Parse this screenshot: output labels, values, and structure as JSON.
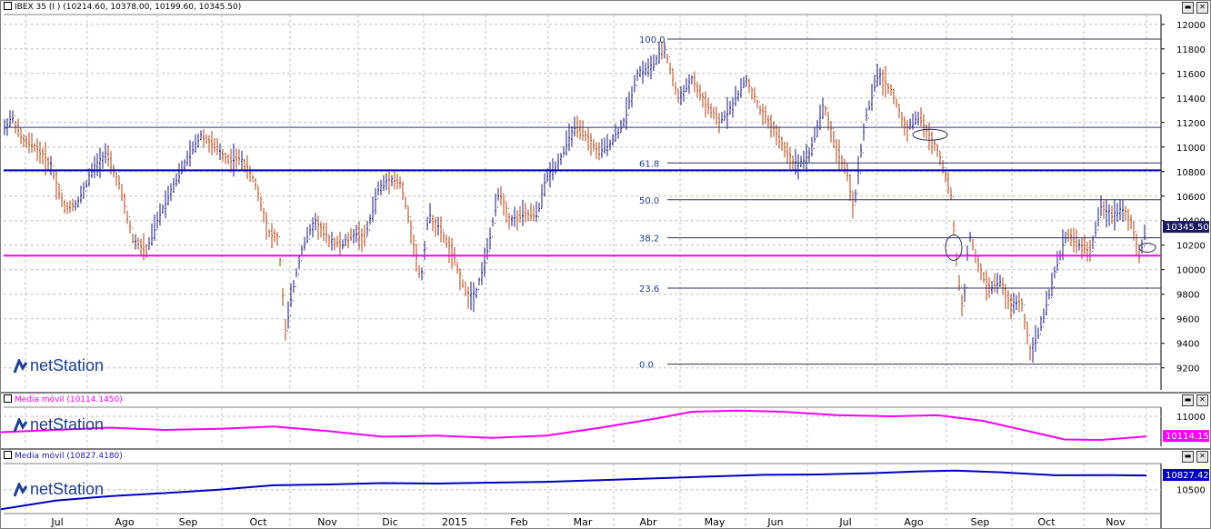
{
  "panels": {
    "main": {
      "title": "IBEX 35 (I ) (10214.60, 10378.00, 10199.60, 10345.50)",
      "last_label": "10345.50",
      "logo": "netStation",
      "minimize_icon": "minimize-icon",
      "close_icon": "close-icon"
    },
    "ma1": {
      "title": "Media móvil (10114.1450)",
      "last_label": "10114.15",
      "logo": "netStation",
      "color": "#ff00ff"
    },
    "ma2": {
      "title": "Media móvil (10827.4180)",
      "last_label": "10827.42",
      "logo": "netStation",
      "color": "#0000c0"
    }
  },
  "months": [
    "Jul",
    "Ago",
    "Sep",
    "Oct",
    "Nov",
    "Dic",
    "2015",
    "Feb",
    "Mar",
    "Abr",
    "May",
    "Jun",
    "Jul",
    "Ago",
    "Sep",
    "Oct",
    "Nov"
  ],
  "chart_data": [
    {
      "type": "bar",
      "subtype": "ohlc",
      "title": "IBEX 35 (I ) (10214.60, 10378.00, 10199.60, 10345.50)",
      "last": {
        "open": 10214.6,
        "high": 10378.0,
        "low": 10199.6,
        "close": 10345.5
      },
      "y_ticks": [
        9200,
        9400,
        9600,
        9800,
        10000,
        10200,
        10400,
        10600,
        10800,
        11000,
        11200,
        11400,
        11600,
        11800,
        12000
      ],
      "ylim": [
        9020,
        12080
      ],
      "x_labels": [
        "Jul",
        "Ago",
        "Sep",
        "Oct",
        "Nov",
        "Dic",
        "2015",
        "Feb",
        "Mar",
        "Abr",
        "May",
        "Jun",
        "Jul",
        "Ago",
        "Sep",
        "Oct",
        "Nov"
      ],
      "grid": true,
      "price_path": [
        [
          0,
          11100
        ],
        [
          12,
          11250
        ],
        [
          24,
          11050
        ],
        [
          38,
          11000
        ],
        [
          55,
          10850
        ],
        [
          70,
          10500
        ],
        [
          85,
          10550
        ],
        [
          100,
          10800
        ],
        [
          115,
          10950
        ],
        [
          130,
          10700
        ],
        [
          145,
          10250
        ],
        [
          160,
          10150
        ],
        [
          175,
          10450
        ],
        [
          190,
          10700
        ],
        [
          205,
          10900
        ],
        [
          220,
          11100
        ],
        [
          235,
          11000
        ],
        [
          250,
          10900
        ],
        [
          265,
          10900
        ],
        [
          280,
          10700
        ],
        [
          295,
          10300
        ],
        [
          305,
          10250
        ],
        [
          313,
          9500
        ],
        [
          320,
          9800
        ],
        [
          330,
          10150
        ],
        [
          345,
          10400
        ],
        [
          360,
          10250
        ],
        [
          375,
          10200
        ],
        [
          390,
          10300
        ],
        [
          400,
          10250
        ],
        [
          415,
          10650
        ],
        [
          428,
          10750
        ],
        [
          440,
          10700
        ],
        [
          452,
          10300
        ],
        [
          462,
          9900
        ],
        [
          470,
          10450
        ],
        [
          485,
          10300
        ],
        [
          498,
          10100
        ],
        [
          512,
          9800
        ],
        [
          522,
          9800
        ],
        [
          535,
          10150
        ],
        [
          548,
          10650
        ],
        [
          560,
          10400
        ],
        [
          575,
          10450
        ],
        [
          590,
          10450
        ],
        [
          600,
          10750
        ],
        [
          615,
          10900
        ],
        [
          630,
          11150
        ],
        [
          642,
          11100
        ],
        [
          658,
          10950
        ],
        [
          672,
          11050
        ],
        [
          685,
          11200
        ],
        [
          700,
          11600
        ],
        [
          715,
          11650
        ],
        [
          730,
          11800
        ],
        [
          745,
          11400
        ],
        [
          760,
          11550
        ],
        [
          775,
          11350
        ],
        [
          790,
          11200
        ],
        [
          805,
          11350
        ],
        [
          820,
          11550
        ],
        [
          835,
          11300
        ],
        [
          850,
          11150
        ],
        [
          860,
          11000
        ],
        [
          875,
          10850
        ],
        [
          890,
          10950
        ],
        [
          905,
          11350
        ],
        [
          918,
          11000
        ],
        [
          930,
          10800
        ],
        [
          938,
          10500
        ],
        [
          950,
          11200
        ],
        [
          965,
          11600
        ],
        [
          980,
          11450
        ],
        [
          995,
          11150
        ],
        [
          1010,
          11250
        ],
        [
          1020,
          11100
        ],
        [
          1032,
          10950
        ],
        [
          1045,
          10600
        ],
        [
          1052,
          10000
        ],
        [
          1058,
          9650
        ],
        [
          1065,
          10300
        ],
        [
          1072,
          10100
        ],
        [
          1085,
          9850
        ],
        [
          1100,
          9900
        ],
        [
          1110,
          9700
        ],
        [
          1122,
          9750
        ],
        [
          1132,
          9350
        ],
        [
          1140,
          9450
        ],
        [
          1150,
          9700
        ],
        [
          1160,
          10000
        ],
        [
          1172,
          10300
        ],
        [
          1185,
          10200
        ],
        [
          1198,
          10150
        ],
        [
          1210,
          10500
        ],
        [
          1222,
          10450
        ],
        [
          1235,
          10500
        ],
        [
          1245,
          10350
        ],
        [
          1252,
          10100
        ],
        [
          1260,
          10345
        ]
      ]
    },
    {
      "type": "line",
      "title": "Media móvil (10114.1450)",
      "last": 10114.15,
      "y_ticks": [
        11000
      ],
      "ylim": [
        9680,
        11400
      ],
      "line_path": [
        [
          0,
          10300
        ],
        [
          60,
          10400
        ],
        [
          120,
          10500
        ],
        [
          180,
          10400
        ],
        [
          240,
          10450
        ],
        [
          300,
          10550
        ],
        [
          360,
          10350
        ],
        [
          420,
          10100
        ],
        [
          480,
          10150
        ],
        [
          540,
          10050
        ],
        [
          600,
          10150
        ],
        [
          660,
          10500
        ],
        [
          720,
          10900
        ],
        [
          760,
          11200
        ],
        [
          810,
          11250
        ],
        [
          860,
          11200
        ],
        [
          920,
          11050
        ],
        [
          980,
          11000
        ],
        [
          1030,
          11050
        ],
        [
          1080,
          10800
        ],
        [
          1130,
          10350
        ],
        [
          1170,
          9980
        ],
        [
          1210,
          9960
        ],
        [
          1260,
          10114
        ]
      ]
    },
    {
      "type": "line",
      "title": "Media móvil (10827.4180)",
      "last": 10827.42,
      "y_ticks": [
        10500
      ],
      "ylim": [
        9950,
        11100
      ],
      "line_path": [
        [
          0,
          10050
        ],
        [
          60,
          10250
        ],
        [
          120,
          10350
        ],
        [
          180,
          10420
        ],
        [
          240,
          10500
        ],
        [
          300,
          10600
        ],
        [
          360,
          10620
        ],
        [
          420,
          10650
        ],
        [
          480,
          10640
        ],
        [
          540,
          10660
        ],
        [
          600,
          10680
        ],
        [
          660,
          10720
        ],
        [
          720,
          10760
        ],
        [
          780,
          10800
        ],
        [
          840,
          10840
        ],
        [
          900,
          10850
        ],
        [
          960,
          10880
        ],
        [
          1010,
          10920
        ],
        [
          1050,
          10940
        ],
        [
          1100,
          10900
        ],
        [
          1160,
          10830
        ],
        [
          1220,
          10835
        ],
        [
          1260,
          10827
        ]
      ]
    }
  ],
  "annotations": {
    "support_line": 10810,
    "resistance_line": 10115,
    "upper_line": 11160,
    "fib_levels": [
      {
        "label": "100.0",
        "value": 11880
      },
      {
        "label": "61.8",
        "value": 10870
      },
      {
        "label": "50.0",
        "value": 10570
      },
      {
        "label": "38.2",
        "value": 10260
      },
      {
        "label": "23.6",
        "value": 9850
      },
      {
        "label": "0.0",
        "value": 9230
      }
    ]
  }
}
